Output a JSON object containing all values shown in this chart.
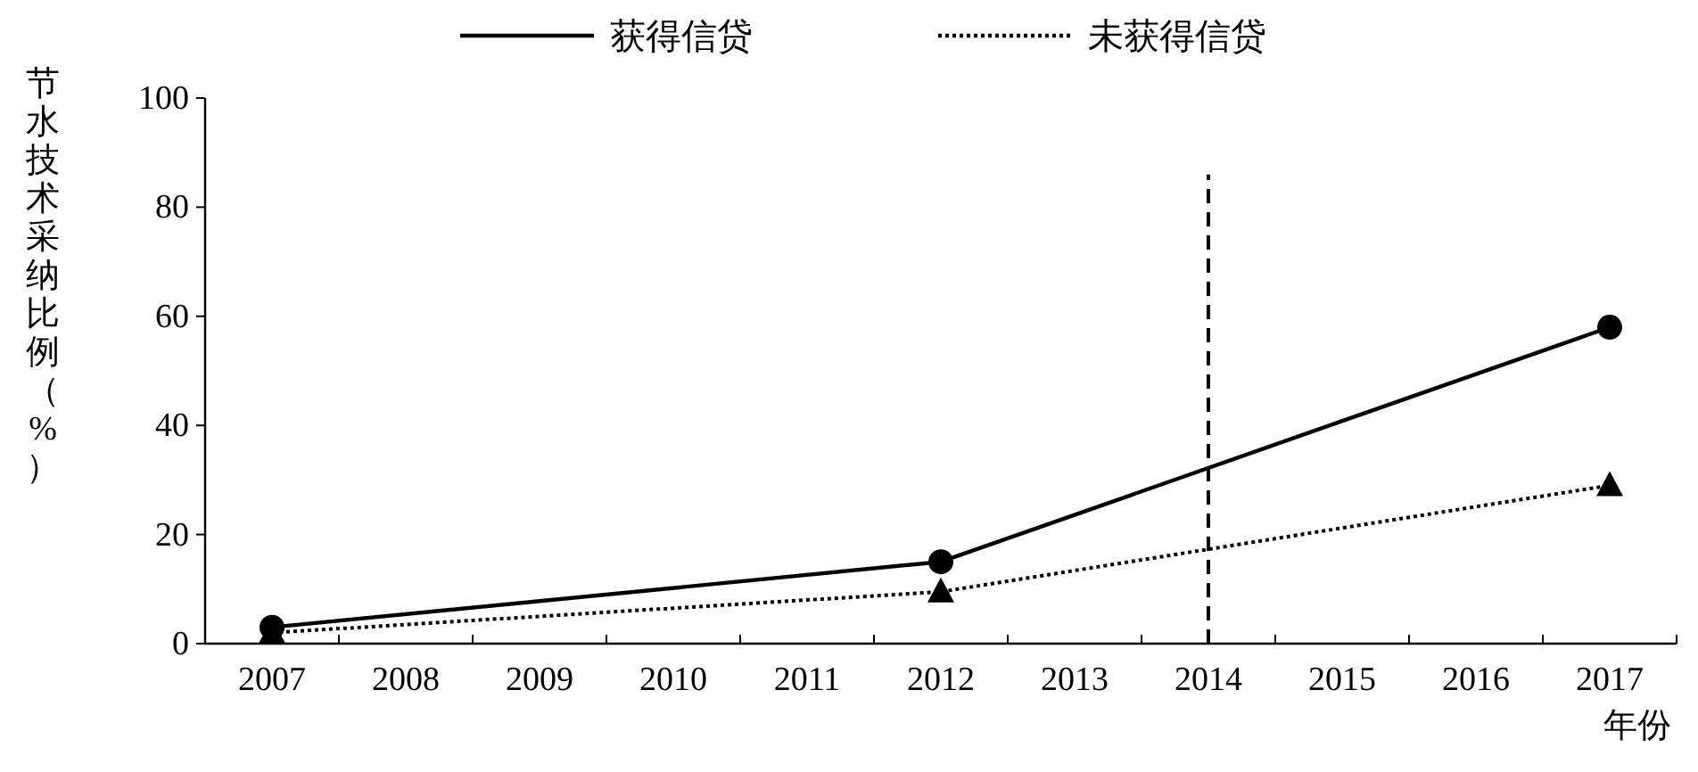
{
  "chart_data": {
    "type": "line",
    "xlabel": "年份",
    "ylabel": "节水技术采纳比例（%）",
    "categories": [
      "2007",
      "2008",
      "2009",
      "2010",
      "2011",
      "2012",
      "2013",
      "2014",
      "2015",
      "2016",
      "2017"
    ],
    "series": [
      {
        "name": "获得信贷",
        "color": "#000000",
        "line_style": "solid",
        "marker": "circle",
        "values": [
          3,
          null,
          null,
          null,
          null,
          15,
          null,
          null,
          null,
          null,
          58
        ]
      },
      {
        "name": "未获得信贷",
        "color": "#000000",
        "line_style": "dotted",
        "marker": "triangle",
        "values": [
          2,
          null,
          null,
          null,
          null,
          9.5,
          null,
          null,
          null,
          null,
          29
        ]
      }
    ],
    "ylim": [
      0,
      100
    ],
    "yticks": [
      0,
      20,
      40,
      60,
      80,
      100
    ],
    "ref_lines": [
      {
        "axis": "x",
        "value": "2014",
        "color": "#000000",
        "line_style": "dashed"
      }
    ],
    "grid": false,
    "legend": "top"
  }
}
